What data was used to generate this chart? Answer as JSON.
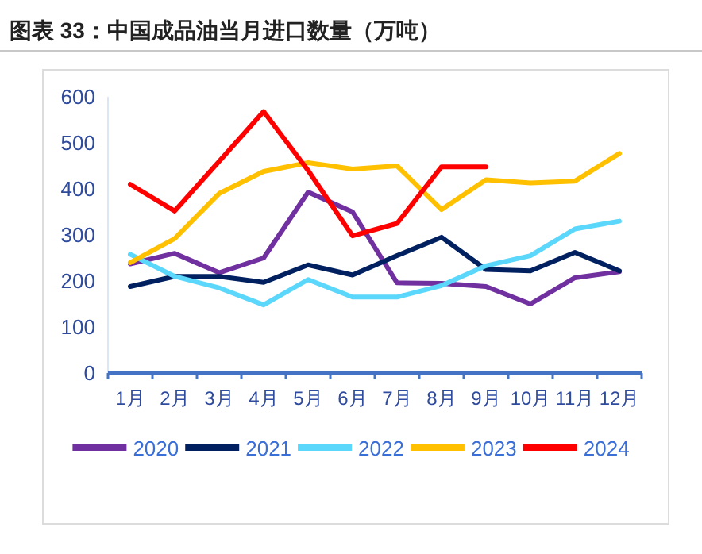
{
  "chart_data": {
    "type": "line",
    "title": "图表 33：中国成品油当月进口数量（万吨）",
    "categories": [
      "1月",
      "2月",
      "3月",
      "4月",
      "5月",
      "6月",
      "7月",
      "8月",
      "9月",
      "10月",
      "11月",
      "12月"
    ],
    "ylim": [
      0,
      600
    ],
    "yticks": [
      0,
      100,
      200,
      300,
      400,
      500,
      600
    ],
    "grid": false,
    "legend": "bottom",
    "marker": "none",
    "line_style": "solid",
    "series": [
      {
        "name": "2020",
        "color": "#7030a0",
        "values": [
          237,
          260,
          218,
          250,
          393,
          350,
          196,
          195,
          188,
          150,
          207,
          220
        ]
      },
      {
        "name": "2021",
        "color": "#002060",
        "values": [
          188,
          210,
          210,
          197,
          235,
          213,
          255,
          295,
          225,
          222,
          262,
          222
        ]
      },
      {
        "name": "2022",
        "color": "#5bd7fb",
        "values": [
          258,
          210,
          185,
          148,
          203,
          165,
          165,
          190,
          233,
          255,
          313,
          330
        ]
      },
      {
        "name": "2023",
        "color": "#ffc000",
        "values": [
          240,
          292,
          390,
          438,
          457,
          443,
          450,
          355,
          420,
          413,
          417,
          477
        ]
      },
      {
        "name": "2024",
        "color": "#ff0000",
        "values": [
          410,
          352,
          460,
          568,
          440,
          298,
          325,
          448,
          448,
          null,
          null,
          null
        ]
      }
    ]
  }
}
